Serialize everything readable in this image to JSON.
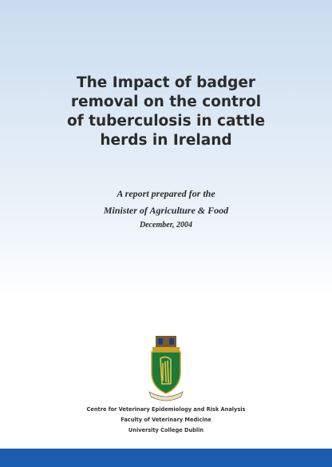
{
  "cover": {
    "title_lines": [
      "The Impact of badger",
      "removal on the control",
      "of tuberculosis in cattle",
      "herds in Ireland"
    ],
    "subtitle_lines": [
      "A report prepared for the",
      "Minister of Agriculture & Food"
    ],
    "date": "December, 2004",
    "institution_lines": [
      "Centre for Veterinary Epidemiology and Risk Analysis",
      "Faculty of Veterinary Medicine",
      "University College Dublin"
    ]
  }
}
